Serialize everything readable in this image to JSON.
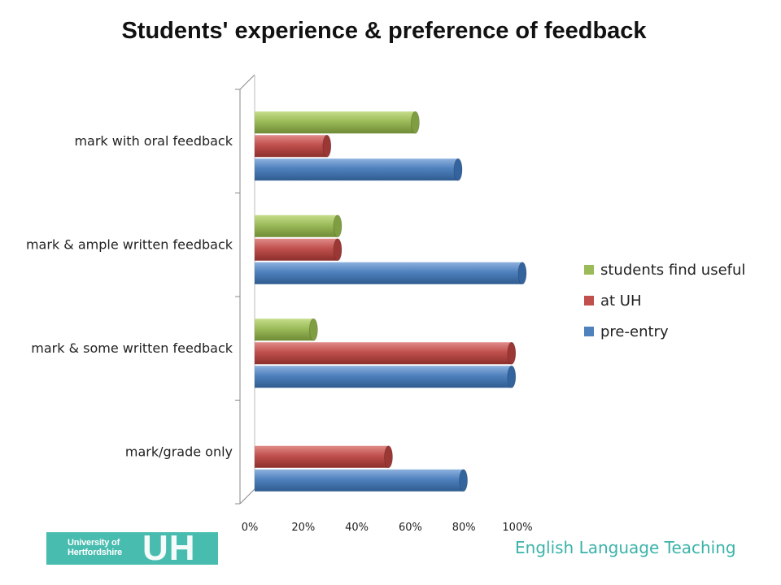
{
  "chart_data": {
    "type": "bar",
    "orientation": "horizontal",
    "title": "Students' experience & preference of feedback",
    "categories": [
      "mark with oral feedback",
      "mark & ample written feedback",
      "mark & some written feedback",
      "mark/grade only"
    ],
    "series": [
      {
        "name": "students find useful",
        "color": "#9bbb59",
        "values": [
          60,
          31,
          22,
          0
        ]
      },
      {
        "name": "at UH",
        "color": "#c0504d",
        "values": [
          27,
          31,
          96,
          50
        ]
      },
      {
        "name": "pre-entry",
        "color": "#4f81bd",
        "values": [
          76,
          100,
          96,
          78
        ]
      }
    ],
    "xlim": [
      0,
      100
    ],
    "xticks": [
      "0%",
      "20%",
      "40%",
      "60%",
      "80%",
      "100%"
    ],
    "legend_position": "right",
    "grid": false
  },
  "logo": {
    "name": "University of Hertfordshire",
    "mark": "UH"
  },
  "footer": {
    "text": "English Language Teaching"
  }
}
